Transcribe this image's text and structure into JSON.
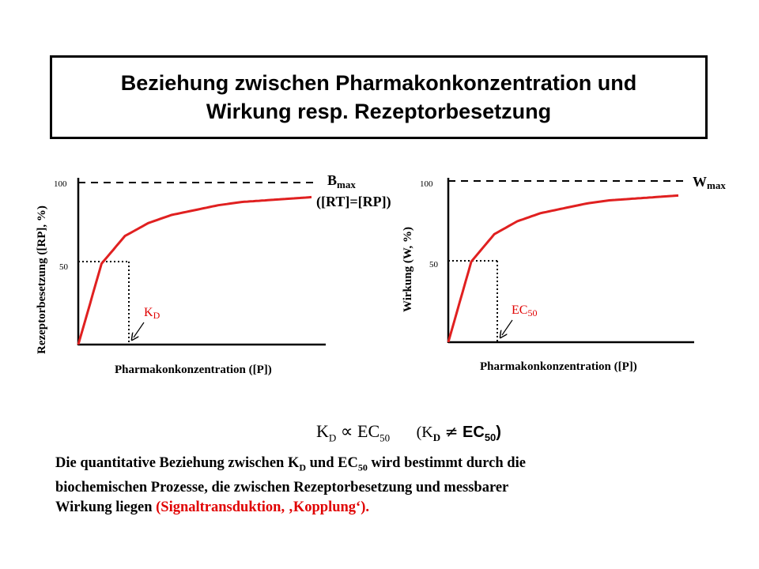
{
  "title": {
    "line1": "Beziehung zwischen Pharmakonkonzentration und",
    "line2": "Wirkung resp. Rezeptorbesetzung"
  },
  "chart_data": [
    {
      "type": "line",
      "ylabel": "Rezeptorbesetzung ([RP], %)",
      "xlabel": "Pharmakonkonzentration ([P])",
      "yticks": [
        "100",
        "50"
      ],
      "ylim": [
        0,
        100
      ],
      "max_label": "B",
      "max_label_sub": "max",
      "max_label_line2": "([RT]=[RP])",
      "half_label": "K",
      "half_label_sub": "D",
      "curve": "hyperbolic saturation",
      "x": [
        0,
        1,
        2,
        3,
        4,
        5,
        6,
        7,
        8,
        9,
        10
      ],
      "values": [
        0,
        50,
        67,
        75,
        80,
        83,
        86,
        88,
        89,
        90,
        91
      ],
      "curve_color": "#e02020"
    },
    {
      "type": "line",
      "ylabel": "Wirkung (W, %)",
      "xlabel": "Pharmakonkonzentration ([P])",
      "yticks": [
        "100",
        "50"
      ],
      "ylim": [
        0,
        100
      ],
      "max_label": "W",
      "max_label_sub": "max",
      "half_label": "EC",
      "half_label_sub": "50",
      "curve": "hyperbolic saturation",
      "x": [
        0,
        1,
        2,
        3,
        4,
        5,
        6,
        7,
        8,
        9,
        10
      ],
      "values": [
        0,
        50,
        67,
        75,
        80,
        83,
        86,
        88,
        89,
        90,
        91
      ],
      "curve_color": "#e02020"
    }
  ],
  "formula": {
    "left_k": "K",
    "left_k_sub": "D",
    "propto": "∝",
    "right_ec": "EC",
    "right_ec_sub": "50",
    "paren_open": "(K",
    "paren_k_sub": "D",
    "neq": "≠",
    "paren_ec": "EC",
    "paren_ec_sub": "50",
    "paren_close": ")"
  },
  "description": {
    "p1": "Die quantitative Beziehung zwischen K",
    "p1_sub": "D",
    "p2": " und EC",
    "p2_sub": "50",
    "p3": " wird bestimmt durch die",
    "line2": "biochemischen Prozesse, die zwischen Rezeptorbesetzung und messbarer",
    "line3_a": "Wirkung liegen ",
    "line3_red": "(Signaltransduktion, ‚Kopplung‘).",
    "red_color": "#e00000"
  }
}
